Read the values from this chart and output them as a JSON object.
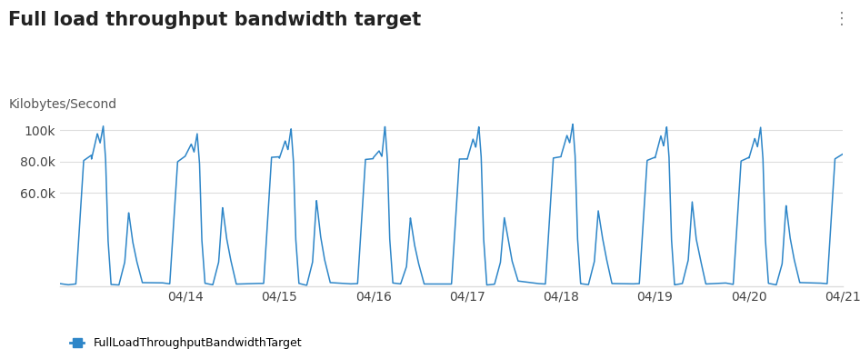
{
  "title": "Full load throughput bandwidth target",
  "ylabel": "Kilobytes/Second",
  "line_color": "#2e86c8",
  "legend_label": "FullLoadThroughputBandwidthTarget",
  "background_color": "#ffffff",
  "yticks": [
    60000,
    80000,
    100000
  ],
  "ytick_labels": [
    "60.0k",
    "80.0k",
    "100k"
  ],
  "ylim": [
    0,
    112000
  ],
  "xlim_start": -8,
  "xlim_end": 192,
  "xtick_positions": [
    24,
    48,
    72,
    96,
    120,
    144,
    168,
    192
  ],
  "xtick_labels": [
    "04/14",
    "04/15",
    "04/16",
    "04/17",
    "04/18",
    "04/19",
    "04/20",
    "04/21"
  ],
  "grid_color": "#dddddd",
  "title_fontsize": 15,
  "tick_fontsize": 10,
  "ylabel_fontsize": 10
}
